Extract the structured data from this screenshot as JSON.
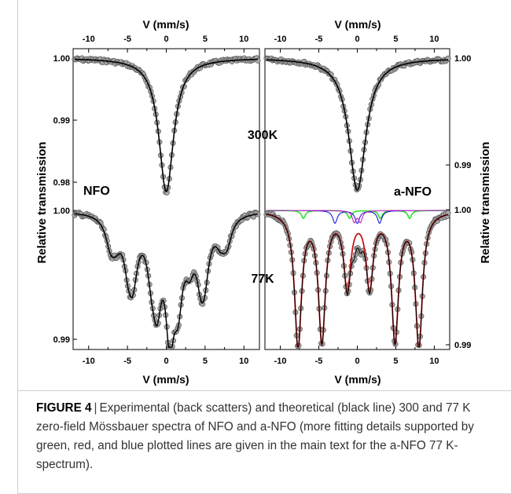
{
  "caption": {
    "label": "FIGURE 4",
    "text": "Experimental (back scatters) and theoretical (black line) 300 and 77 K zero-field Mössbauer spectra of NFO and a-NFO (more fitting details supported by green, red, and blue plotted lines are given in the main text for the a-NFO 77 K-spectrum)."
  },
  "colors": {
    "data": "#9a9a9a",
    "fit": "#000000",
    "red": "#c0181a",
    "green": "#28e02a",
    "blue": "#1a1ad8",
    "magenta": "#c020c0"
  },
  "chart_data": [
    {
      "type": "scatter",
      "panel": "NFO 300K",
      "xlabel": "V (mm/s)",
      "ylabel": "Relative transmission",
      "xlim": [
        -12,
        12
      ],
      "xticks": [
        -10,
        -5,
        0,
        5,
        10
      ],
      "yticks": [
        "1.00",
        "0.99",
        "0.98"
      ],
      "annotation": "300K",
      "series": [
        {
          "x": [
            -12,
            -6,
            -3,
            -1.5,
            -0.7,
            0,
            0.7,
            1.5,
            3,
            6,
            12
          ],
          "values": [
            1.0,
            0.9985,
            0.9955,
            0.9905,
            0.984,
            0.9778,
            0.984,
            0.9905,
            0.9955,
            0.9985,
            1.0
          ]
        }
      ]
    },
    {
      "type": "scatter",
      "panel": "a-NFO 300K",
      "xlabel": "V (mm/s)",
      "ylabel": "Relative transmission",
      "xlim": [
        -12,
        12
      ],
      "xticks": [
        -10,
        -5,
        0,
        5,
        10
      ],
      "yticks": [
        "1.00",
        "0.99"
      ],
      "series": [
        {
          "x": [
            -12,
            -6,
            -3,
            -1.5,
            -0.7,
            0,
            0.7,
            1.5,
            3,
            6,
            12
          ],
          "values": [
            1.0,
            0.999,
            0.997,
            0.994,
            0.99,
            0.9864,
            0.99,
            0.994,
            0.997,
            0.999,
            1.0
          ]
        }
      ]
    },
    {
      "type": "scatter",
      "panel": "NFO 77K",
      "label": "NFO",
      "annotation": "77K",
      "xlabel": "V (mm/s)",
      "xlim": [
        -12,
        12
      ],
      "xticks": [
        -10,
        -5,
        0,
        5,
        10
      ],
      "yticks": [
        "1.00",
        "0.99"
      ],
      "ylim": [
        0.989,
        1.001
      ],
      "series": [
        {
          "name": "lines",
          "x": [
            -7.2,
            -4.3,
            -1.2,
            1.5,
            4.5,
            7.8,
            -4.9,
            -1.9,
            0.3,
            0.6,
            3.0,
            5.0
          ],
          "values": [
            0.996,
            0.9925,
            0.9905,
            0.9905,
            0.9925,
            0.996,
            0.992,
            0.9935,
            0.991,
            0.991,
            0.993,
            0.992
          ]
        }
      ]
    },
    {
      "type": "scatter",
      "panel": "a-NFO 77K",
      "label": "a-NFO",
      "xlabel": "V (mm/s)",
      "xlim": [
        -12,
        12
      ],
      "xticks": [
        -10,
        -5,
        0,
        5,
        10
      ],
      "yticks": [
        "1.00",
        "0.99"
      ],
      "ylim": [
        0.989,
        1.001
      ],
      "series": [
        {
          "name": "fit",
          "x": [
            -7.7,
            -4.6,
            -1.3,
            1.6,
            4.9,
            8.0
          ],
          "values": [
            0.9895,
            0.9905,
            0.9945,
            0.9945,
            0.9905,
            0.9895
          ]
        },
        {
          "name": "doublet",
          "x": [
            -0.4,
            0.4
          ],
          "values": [
            0.9965,
            0.9965
          ]
        }
      ]
    }
  ],
  "axis_labels": {
    "top_left": "V (mm/s)",
    "top_right": "V (mm/s)",
    "bottom_left": "V (mm/s)",
    "bottom_right": "V (mm/s)",
    "left": "Relative transmission",
    "right": "Relative transmission"
  },
  "annotations": {
    "t300": "300K",
    "t77": "77K",
    "nfo": "NFO",
    "anfo": "a-NFO"
  },
  "ticks": {
    "x": [
      "-10",
      "-5",
      "0",
      "5",
      "10"
    ],
    "y_left": [
      "1.00",
      "0.99",
      "0.98",
      "1.00",
      "0.99"
    ],
    "y_right": [
      "1.00",
      "0.99",
      "1.00",
      "0.99"
    ]
  }
}
